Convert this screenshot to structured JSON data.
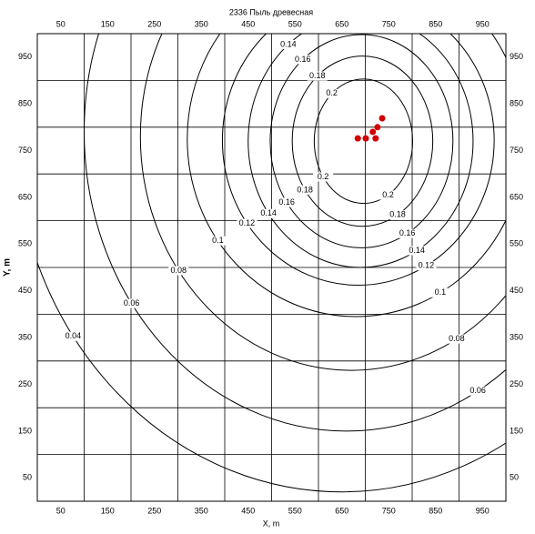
{
  "chart_data": {
    "type": "contour",
    "title": "2336 Пыль древесная",
    "xlabel": "X, m",
    "ylabel": "Y, m",
    "xlim": [
      0,
      1000
    ],
    "ylim": [
      0,
      1000
    ],
    "xticks": [
      50,
      150,
      250,
      350,
      450,
      550,
      650,
      750,
      850,
      950
    ],
    "yticks": [
      50,
      150,
      250,
      350,
      450,
      550,
      650,
      750,
      850,
      950
    ],
    "xgrid": [
      100,
      200,
      300,
      400,
      500,
      600,
      700,
      800,
      900
    ],
    "ygrid": [
      100,
      200,
      300,
      400,
      500,
      600,
      700,
      800,
      900
    ],
    "color": "#000000",
    "contours": [
      {
        "level": 0.04,
        "cx": 650,
        "cy": 800,
        "rx": 700,
        "ry": 780
      },
      {
        "level": 0.06,
        "cx": 660,
        "cy": 790,
        "rx": 560,
        "ry": 640
      },
      {
        "level": 0.08,
        "cx": 670,
        "cy": 780,
        "rx": 450,
        "ry": 500
      },
      {
        "level": 0.1,
        "cx": 680,
        "cy": 775,
        "rx": 360,
        "ry": 380
      },
      {
        "level": 0.12,
        "cx": 685,
        "cy": 772,
        "rx": 290,
        "ry": 310
      },
      {
        "level": 0.14,
        "cx": 690,
        "cy": 770,
        "rx": 240,
        "ry": 270
      },
      {
        "level": 0.16,
        "cx": 692,
        "cy": 770,
        "rx": 195,
        "ry": 228
      },
      {
        "level": 0.18,
        "cx": 694,
        "cy": 770,
        "rx": 150,
        "ry": 182
      },
      {
        "level": 0.2,
        "cx": 696,
        "cy": 770,
        "rx": 105,
        "ry": 133
      }
    ],
    "sources": {
      "color": "#d00000",
      "x": [
        736,
        684,
        701,
        716,
        726,
        722
      ],
      "y": [
        819,
        776,
        776,
        790,
        800,
        776
      ]
    }
  }
}
